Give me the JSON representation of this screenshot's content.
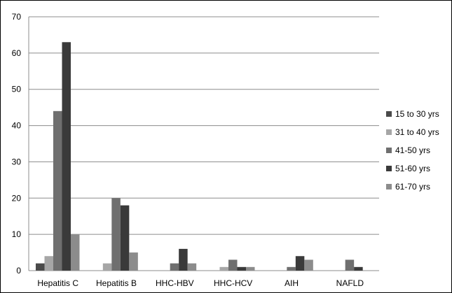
{
  "chart_data": {
    "type": "bar",
    "title": "",
    "xlabel": "",
    "ylabel": "",
    "categories": [
      "Hepatitis C",
      "Hepatitis B",
      "HHC-HBV",
      "HHC-HCV",
      "AIH",
      "NAFLD"
    ],
    "series": [
      {
        "name": "15 to 30 yrs",
        "values": [
          2,
          0,
          0,
          0,
          0,
          0
        ],
        "color": "#4a4a4a"
      },
      {
        "name": "31 to 40 yrs",
        "values": [
          4,
          2,
          0,
          1,
          0,
          0
        ],
        "color": "#a6a6a6"
      },
      {
        "name": "41-50 yrs",
        "values": [
          44,
          20,
          2,
          3,
          1,
          3
        ],
        "color": "#6f6f6f"
      },
      {
        "name": "51-60 yrs",
        "values": [
          63,
          18,
          6,
          1,
          4,
          1
        ],
        "color": "#3a3a3a"
      },
      {
        "name": "61-70 yrs",
        "values": [
          10,
          5,
          2,
          1,
          3,
          0
        ],
        "color": "#8c8c8c"
      }
    ],
    "ylim": [
      0,
      70
    ],
    "yticks": [
      0,
      10,
      20,
      30,
      40,
      50,
      60,
      70
    ],
    "grid": true,
    "legend": "right"
  }
}
